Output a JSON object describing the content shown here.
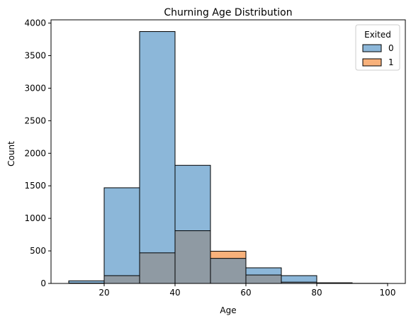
{
  "chart_data": {
    "type": "bar",
    "title": "Churning Age Distribution",
    "xlabel": "Age",
    "ylabel": "Count",
    "xlim": [
      5,
      105
    ],
    "ylim": [
      0,
      4050
    ],
    "xticks": [
      "20",
      "40",
      "60",
      "80",
      "100"
    ],
    "yticks": [
      "0",
      "500",
      "1000",
      "1500",
      "2000",
      "2500",
      "3000",
      "3500",
      "4000"
    ],
    "bins": [
      [
        10,
        20
      ],
      [
        20,
        30
      ],
      [
        30,
        40
      ],
      [
        40,
        50
      ],
      [
        50,
        60
      ],
      [
        60,
        70
      ],
      [
        70,
        80
      ],
      [
        80,
        90
      ],
      [
        90,
        100
      ]
    ],
    "series": [
      {
        "name": "0",
        "color": "#1f77b4",
        "values": [
          40,
          1470,
          3870,
          1815,
          385,
          240,
          120,
          10,
          2
        ]
      },
      {
        "name": "1",
        "color": "#ff7f0e",
        "values": [
          5,
          120,
          470,
          810,
          495,
          130,
          20,
          3,
          0
        ]
      }
    ],
    "overlap_color": "#8f9aa3",
    "legend": {
      "title": "Exited",
      "position": "top-right"
    },
    "grid": false
  }
}
